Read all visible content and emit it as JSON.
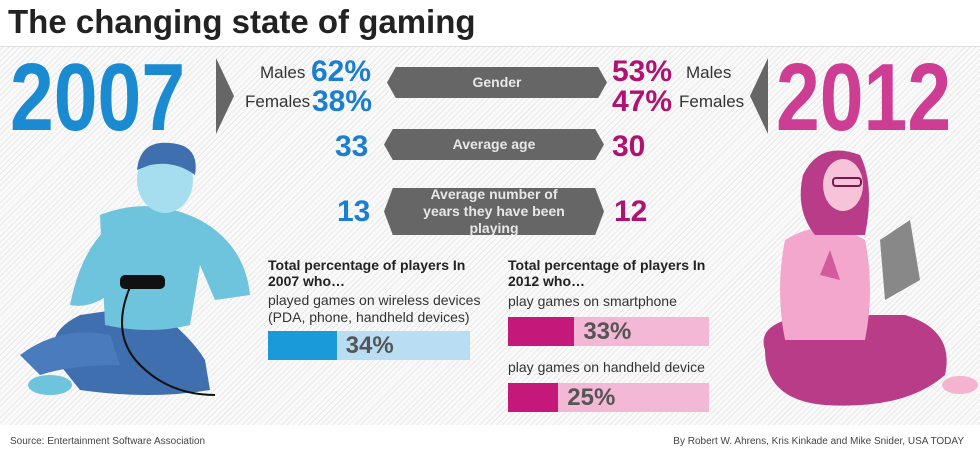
{
  "title": "The changing state of gaming",
  "left": {
    "year": "2007",
    "males_label": "Males",
    "males": "62%",
    "females_label": "Females",
    "females": "38%",
    "avg_age": "33",
    "years_playing": "13"
  },
  "right": {
    "year": "2012",
    "males_label": "Males",
    "males": "53%",
    "females_label": "Females",
    "females": "47%",
    "avg_age": "30",
    "years_playing": "12"
  },
  "categories": {
    "gender": "Gender",
    "age": "Average age",
    "years": "Average number of years they have been playing"
  },
  "colors": {
    "blue": "#1a7fcf",
    "magenta": "#b01272",
    "bar_blue": "#1a9ad8",
    "bar_blue_bg": "#b9def3",
    "bar_mag": "#c4187a",
    "bar_mag_bg": "#f2b8d6",
    "label_gray": "#666666"
  },
  "chart_data": [
    {
      "type": "bar",
      "title": "Total percentage of players In 2007 who…",
      "categories": [
        "played games on wireless devices (PDA, phone, handheld devices)"
      ],
      "values": [
        34
      ],
      "ylim": [
        0,
        100
      ],
      "labels": [
        "34%"
      ]
    },
    {
      "type": "bar",
      "title": "Total percentage of players In 2012 who…",
      "categories": [
        "play games on smartphone",
        "play games on handheld device"
      ],
      "values": [
        33,
        25
      ],
      "ylim": [
        0,
        100
      ],
      "labels": [
        "33%",
        "25%"
      ]
    }
  ],
  "footer": {
    "source": "Source: Entertainment Software Association",
    "credit": "By Robert W. Ahrens, Kris Kinkade and Mike Snider, USA TODAY"
  }
}
